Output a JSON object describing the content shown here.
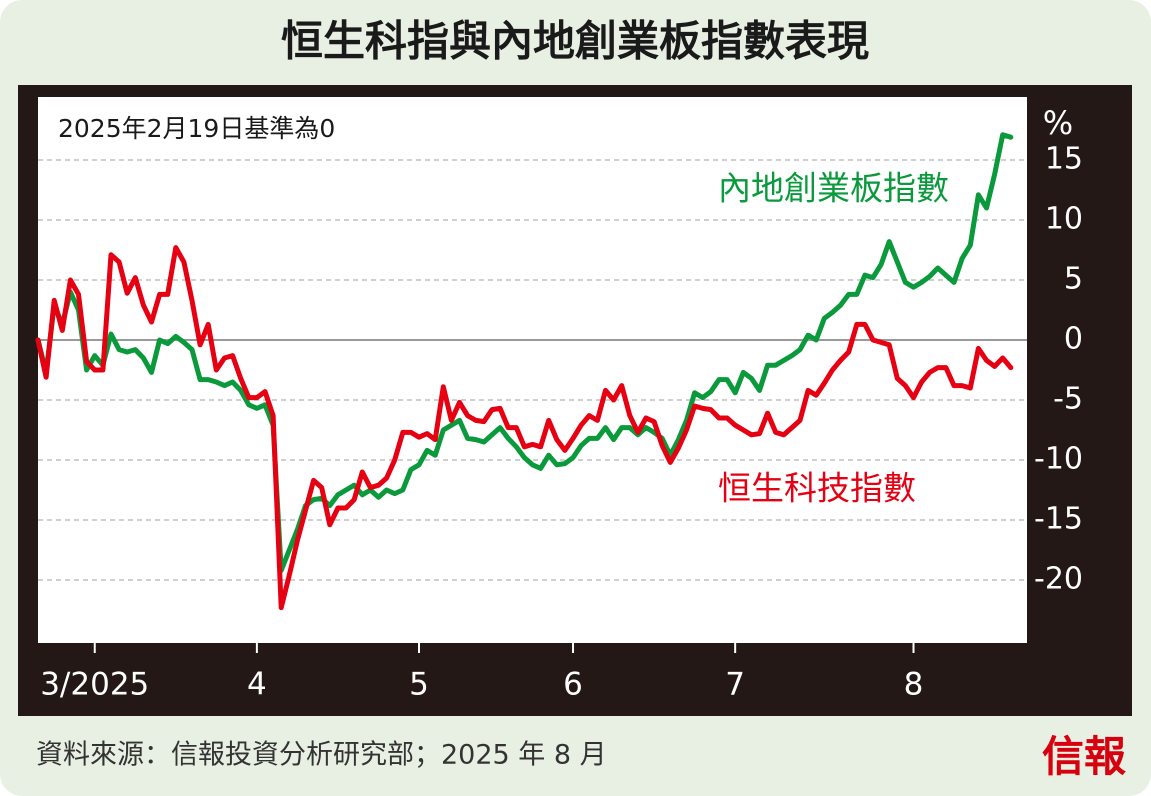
{
  "chart_data": {
    "type": "line",
    "title": "恒生科指與內地創業板指數表現",
    "annotation": "2025年2月19日基準為0",
    "y_unit": "%",
    "source": "資料來源：信報投資分析研究部；2025 年 8 月",
    "logo": "信報",
    "x": [
      0,
      1,
      2,
      3,
      4,
      5,
      6,
      7,
      8,
      9,
      10,
      11,
      12,
      13,
      14,
      15,
      16,
      17,
      18,
      19,
      20,
      21,
      22,
      23,
      24,
      25,
      26,
      27,
      28,
      29,
      30,
      31,
      32,
      33,
      34,
      35,
      36,
      37,
      38,
      39,
      40,
      41,
      42,
      43,
      44,
      45,
      46,
      47,
      48,
      49,
      50,
      51,
      52,
      53,
      54,
      55,
      56,
      57,
      58,
      59,
      60,
      61,
      62,
      63,
      64,
      65,
      66,
      67,
      68,
      69,
      70,
      71,
      72,
      73,
      74,
      75,
      76,
      77,
      78,
      79,
      80,
      81,
      82,
      83,
      84,
      85,
      86,
      87,
      88,
      89,
      90,
      91,
      92,
      93,
      94,
      95,
      96,
      97,
      98,
      99,
      100,
      101,
      102,
      103,
      104,
      105,
      106,
      107,
      108,
      109,
      110,
      111,
      112,
      113,
      114,
      115,
      116,
      117,
      118,
      119,
      120
    ],
    "xlim": [
      0,
      122
    ],
    "xticks": [
      {
        "value": 7,
        "label": "3/2025"
      },
      {
        "value": 27,
        "label": "4"
      },
      {
        "value": 47,
        "label": "5"
      },
      {
        "value": 66,
        "label": "6"
      },
      {
        "value": 86,
        "label": "7"
      },
      {
        "value": 108,
        "label": "8"
      }
    ],
    "ylim": [
      -25.25,
      20.25
    ],
    "yticks": [
      -20,
      -15,
      -10,
      -5,
      0,
      5,
      10,
      15
    ],
    "grid": true,
    "series": [
      {
        "name": "內地創業板指數",
        "color": "#0a9a3c",
        "values": [
          0,
          -2.7,
          2.9,
          1.3,
          4,
          2.5,
          -2.5,
          -1.3,
          -2.1,
          0.5,
          -0.8,
          -1,
          -0.8,
          -1.5,
          -2.7,
          0,
          -0.3,
          0.3,
          -0.2,
          -0.8,
          -3.3,
          -3.3,
          -3.5,
          -3.8,
          -3.5,
          -4.2,
          -5.4,
          -5.7,
          -5.4,
          -7.1,
          -19.2,
          -17.5,
          -15.8,
          -13.8,
          -13.3,
          -13.2,
          -13.8,
          -12.9,
          -12.5,
          -12.1,
          -12.9,
          -12.5,
          -13.1,
          -12.5,
          -12.8,
          -12.5,
          -10.8,
          -10.4,
          -9.2,
          -9.6,
          -7.5,
          -7.1,
          -6.7,
          -8.2,
          -8.3,
          -8.5,
          -7.9,
          -7.3,
          -8.2,
          -8.9,
          -9.8,
          -10.4,
          -10.7,
          -9.6,
          -10.4,
          -10.3,
          -9.8,
          -8.8,
          -8.2,
          -8.2,
          -7.3,
          -8.3,
          -7.3,
          -7.3,
          -7.9,
          -7.3,
          -7.7,
          -8.2,
          -9.6,
          -8.3,
          -6.7,
          -4.4,
          -4.8,
          -4.3,
          -3.3,
          -3.3,
          -4.4,
          -2.7,
          -3.2,
          -4.2,
          -2.1,
          -2.1,
          -1.7,
          -1.3,
          -0.8,
          0.4,
          0,
          1.8,
          2.3,
          2.9,
          3.8,
          3.8,
          5.4,
          5.2,
          6.3,
          8.2,
          6.5,
          4.8,
          4.4,
          4.8,
          5.3,
          6,
          5.4,
          4.8,
          6.8,
          7.9,
          12.1,
          11,
          13.8,
          17.1,
          16.9
        ]
      },
      {
        "name": "恒生科技指數",
        "color": "#e60012",
        "values": [
          0,
          -3.1,
          3.3,
          0.8,
          5,
          3.8,
          -1.8,
          -2.5,
          -2.5,
          7.1,
          6.5,
          3.9,
          5.2,
          2.9,
          1.5,
          3.8,
          3.8,
          7.7,
          6.5,
          3.3,
          -0.4,
          1.3,
          -2.5,
          -1.5,
          -1.3,
          -3.2,
          -4.8,
          -4.8,
          -4.3,
          -6.3,
          -22.3,
          -19.6,
          -16.7,
          -14.2,
          -11.7,
          -12.3,
          -15.4,
          -14,
          -14,
          -13.3,
          -11,
          -12.3,
          -12.1,
          -11.5,
          -10,
          -7.7,
          -7.7,
          -8.1,
          -7.8,
          -8.3,
          -3.9,
          -6.7,
          -5.2,
          -6.3,
          -6.7,
          -6.8,
          -5.8,
          -5.7,
          -7.3,
          -7.3,
          -8.9,
          -8.7,
          -8.9,
          -6.7,
          -8.3,
          -9.2,
          -8.2,
          -7.1,
          -6.3,
          -6.7,
          -4.2,
          -5,
          -3.8,
          -6.3,
          -7.7,
          -6.5,
          -6.8,
          -8.8,
          -10.2,
          -9,
          -7.5,
          -5.5,
          -5.7,
          -5.8,
          -6.5,
          -6.5,
          -7.1,
          -7.5,
          -7.9,
          -7.8,
          -6.1,
          -7.7,
          -7.9,
          -7.3,
          -6.7,
          -4.2,
          -4.6,
          -3.6,
          -2.5,
          -1.7,
          -1,
          1.3,
          1.3,
          0,
          -0.2,
          -0.4,
          -3.2,
          -3.8,
          -4.8,
          -3.5,
          -2.7,
          -2.3,
          -2.3,
          -3.8,
          -3.8,
          -4,
          -0.7,
          -1.7,
          -2.2,
          -1.5,
          -2.3
        ]
      }
    ]
  }
}
